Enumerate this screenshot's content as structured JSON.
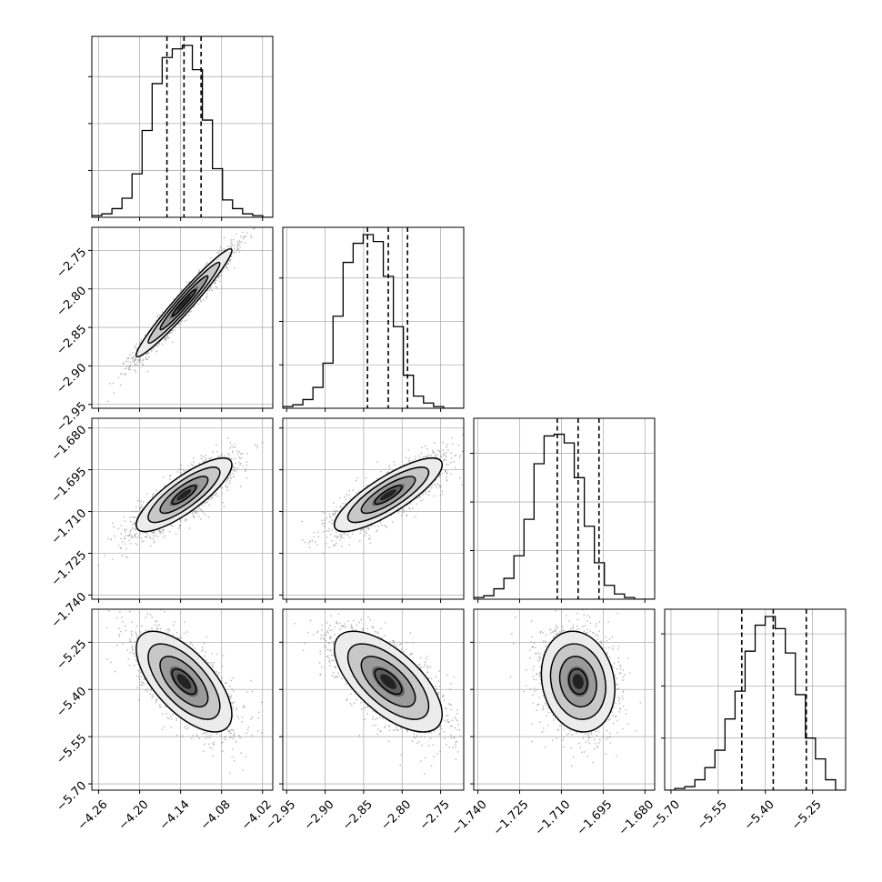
{
  "chart_data": {
    "type": "corner",
    "title": "",
    "params": [
      {
        "axis_range": [
          -4.27,
          -4.005
        ],
        "ticks": [
          -4.26,
          -4.2,
          -4.14,
          -4.08,
          -4.02
        ],
        "tick_labels": [
          "−4.26",
          "−4.20",
          "−4.14",
          "−4.08",
          "−4.02"
        ],
        "quantiles": [
          -4.16,
          -4.135,
          -4.11
        ]
      },
      {
        "axis_range": [
          -2.955,
          -2.72
        ],
        "ticks": [
          -2.95,
          -2.9,
          -2.85,
          -2.8,
          -2.75
        ],
        "tick_labels": [
          "−2.95",
          "−2.90",
          "−2.85",
          "−2.80",
          "−2.75"
        ],
        "quantiles": [
          -2.845,
          -2.818,
          -2.793
        ]
      },
      {
        "axis_range": [
          -1.7415,
          -1.6765
        ],
        "ticks": [
          -1.74,
          -1.725,
          -1.71,
          -1.695,
          -1.68
        ],
        "tick_labels": [
          "−1.740",
          "−1.725",
          "−1.710",
          "−1.695",
          "−1.680"
        ],
        "quantiles": [
          -1.7115,
          -1.704,
          -1.6965
        ]
      },
      {
        "axis_range": [
          -5.72,
          -5.145
        ],
        "ticks": [
          -5.7,
          -5.55,
          -5.4,
          -5.25
        ],
        "tick_labels": [
          "−5.70",
          "−5.55",
          "−5.40",
          "−5.25"
        ],
        "quantiles": [
          -5.475,
          -5.375,
          -5.27
        ]
      }
    ],
    "histograms": [
      [
        0.01,
        0.02,
        0.05,
        0.11,
        0.25,
        0.5,
        0.77,
        0.92,
        0.97,
        0.99,
        0.85,
        0.56,
        0.28,
        0.1,
        0.05,
        0.02,
        0.01,
        0.0
      ],
      [
        0.01,
        0.02,
        0.05,
        0.12,
        0.26,
        0.53,
        0.84,
        0.95,
        1.0,
        0.96,
        0.76,
        0.47,
        0.19,
        0.07,
        0.03,
        0.01,
        0.0,
        0.0
      ],
      [
        0.01,
        0.02,
        0.06,
        0.12,
        0.25,
        0.46,
        0.78,
        0.94,
        0.95,
        0.9,
        0.7,
        0.42,
        0.21,
        0.08,
        0.03,
        0.01,
        0.0,
        0.0
      ],
      [
        0.0,
        0.01,
        0.02,
        0.06,
        0.13,
        0.23,
        0.41,
        0.57,
        0.8,
        0.95,
        1.0,
        0.93,
        0.79,
        0.55,
        0.3,
        0.18,
        0.06,
        0.0
      ]
    ],
    "hist_yticks": [
      [
        0.27,
        0.54,
        0.81
      ],
      [
        0.25,
        0.5,
        0.75
      ],
      [
        0.28,
        0.56,
        0.84
      ],
      [
        0.3,
        0.6,
        0.9
      ]
    ],
    "pairs": [
      {
        "row": 1,
        "col": 0,
        "mean": [
          -4.135,
          -2.818
        ],
        "sd": [
          0.035,
          0.035
        ],
        "corr": 0.97
      },
      {
        "row": 2,
        "col": 0,
        "mean": [
          -4.135,
          -1.704
        ],
        "sd": [
          0.035,
          0.0066
        ],
        "corr": 0.82
      },
      {
        "row": 2,
        "col": 1,
        "mean": [
          -2.818,
          -1.704
        ],
        "sd": [
          0.035,
          0.0066
        ],
        "corr": 0.82
      },
      {
        "row": 3,
        "col": 0,
        "mean": [
          -4.135,
          -5.375
        ],
        "sd": [
          0.035,
          0.08
        ],
        "corr": -0.65
      },
      {
        "row": 3,
        "col": 1,
        "mean": [
          -2.818,
          -5.375
        ],
        "sd": [
          0.035,
          0.08
        ],
        "corr": -0.65
      },
      {
        "row": 3,
        "col": 2,
        "mean": [
          -1.704,
          -5.375
        ],
        "sd": [
          0.0066,
          0.08
        ],
        "corr": -0.15
      }
    ],
    "contour_levels_sigma": [
      0.5,
      1.0,
      1.5,
      2.0
    ],
    "xlabel": "",
    "ylabel": "",
    "grid": true,
    "legend": "none",
    "colors": {
      "line": "#000000",
      "points": "#777777",
      "grid": "#b0b0b0"
    }
  }
}
